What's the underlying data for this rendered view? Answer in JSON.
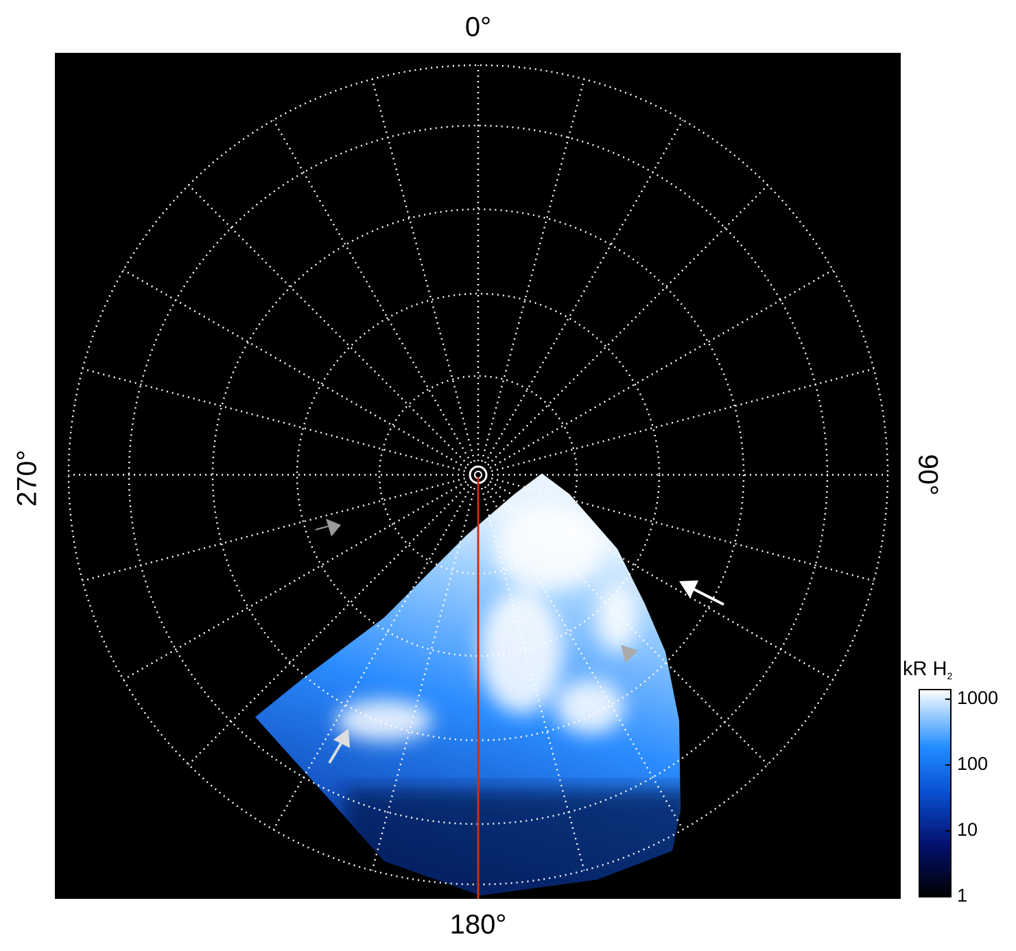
{
  "map": {
    "labels": {
      "top": "0°",
      "right": "90°",
      "bottom": "180°",
      "left": "270°"
    },
    "colorbar": {
      "label": "kR H",
      "label_sub": "2",
      "scale": "log",
      "lim": [
        1,
        1400
      ],
      "ticks": [
        1,
        10,
        100,
        1000
      ]
    }
  }
}
